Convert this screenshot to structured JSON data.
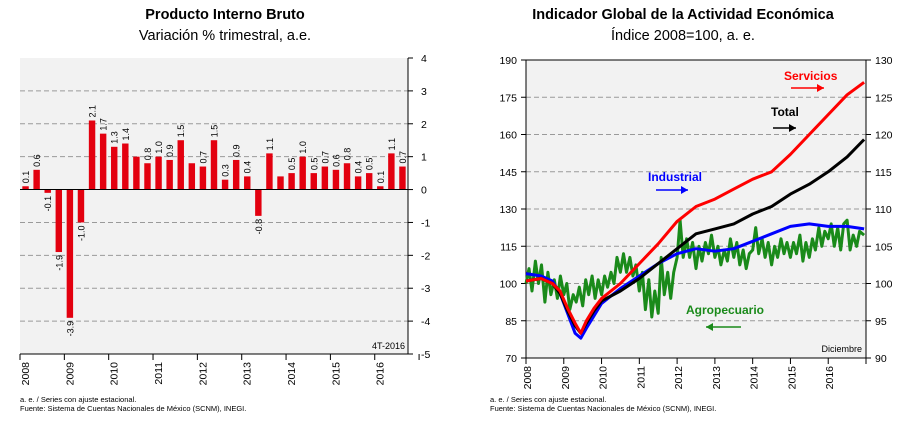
{
  "charts": [
    {
      "type": "bar",
      "title": "Producto Interno Bruto",
      "subtitle": "Variación % trimestral, a.e.",
      "ylim": [
        -5,
        4
      ],
      "yticks": [
        "4",
        "3",
        "2",
        "1",
        "0",
        "-1",
        "-2",
        "-3",
        "-4",
        "-5"
      ],
      "year_labels": [
        "2008",
        "2009",
        "2010",
        "2011",
        "2012",
        "2013",
        "2014",
        "2015",
        "2016"
      ],
      "annotation": "4T-2016",
      "footnote_1": "a. e. / Series con ajuste estacional.",
      "footnote_2": "Fuente: Sistema de Cuentas Nacionales de México (SCNM), INEGI.",
      "bar_color": "#e3000f",
      "values": [
        0.1,
        0.6,
        -0.1,
        -1.9,
        -3.9,
        -1.0,
        2.1,
        1.7,
        1.3,
        1.4,
        1.0,
        0.8,
        1.0,
        0.9,
        1.5,
        0.8,
        0.7,
        1.5,
        0.3,
        0.9,
        0.4,
        -0.8,
        1.1,
        0.4,
        0.5,
        1.0,
        0.5,
        0.7,
        0.6,
        0.8,
        0.4,
        0.5,
        0.1,
        1.1,
        0.7
      ],
      "value_labels": [
        "0.1",
        "0.6",
        "-0.1",
        "-1.9",
        "-3.9",
        "-1.0",
        "2.1",
        "1.7",
        "1.3",
        "1.4",
        "1.0",
        "0.8",
        "1.0",
        "0.9",
        "1.5",
        "0.8",
        "0.7",
        "1.5",
        "0.3",
        "0.9",
        "0.4",
        "-0.8",
        "1.1",
        "0.4",
        "0.5",
        "1.0",
        "0.5",
        "0.7",
        "0.6",
        "0.8",
        "0.4",
        "0.5",
        "0.1",
        "1.1",
        "0.7"
      ],
      "label_shown": [
        true,
        true,
        true,
        true,
        true,
        true,
        true,
        true,
        true,
        true,
        false,
        true,
        true,
        true,
        true,
        false,
        true,
        true,
        true,
        true,
        true,
        true,
        true,
        false,
        true,
        true,
        true,
        true,
        true,
        true,
        true,
        true,
        true,
        true,
        true
      ]
    },
    {
      "type": "line",
      "title": "Indicador Global de la Actividad Económica",
      "subtitle": "Índice 2008=100, a. e.",
      "y_left": [
        70,
        190
      ],
      "y_left_ticks": [
        "190",
        "175",
        "160",
        "145",
        "130",
        "115",
        "100",
        "85",
        "70"
      ],
      "y_right": [
        90,
        130
      ],
      "y_right_ticks": [
        "130",
        "125",
        "120",
        "115",
        "110",
        "105",
        "100",
        "95",
        "90"
      ],
      "x_range": [
        2008,
        2017
      ],
      "year_labels": [
        "2008",
        "2009",
        "2010",
        "2011",
        "2012",
        "2013",
        "2014",
        "2015",
        "2016"
      ],
      "annotation": "Diciembre",
      "footnote_1": "a. e. / Series con ajuste estacional.",
      "footnote_2": "Fuente: Sistema de Cuentas Nacionales de México (SCNM), INEGI.",
      "series": [
        {
          "name": "Servicios",
          "axis": "left",
          "color": "#ff0000",
          "points": [
            [
              2008.0,
              101
            ],
            [
              2008.4,
              102
            ],
            [
              2008.7,
              100
            ],
            [
              2008.9,
              97
            ],
            [
              2009.1,
              90
            ],
            [
              2009.3,
              84
            ],
            [
              2009.45,
              80
            ],
            [
              2009.6,
              85
            ],
            [
              2009.8,
              90
            ],
            [
              2010.0,
              94
            ],
            [
              2010.5,
              100
            ],
            [
              2011.0,
              108
            ],
            [
              2011.5,
              116
            ],
            [
              2012.0,
              125
            ],
            [
              2012.5,
              131
            ],
            [
              2013.0,
              134
            ],
            [
              2013.5,
              138
            ],
            [
              2014.0,
              142
            ],
            [
              2014.5,
              145
            ],
            [
              2015.0,
              152
            ],
            [
              2015.5,
              160
            ],
            [
              2016.0,
              168
            ],
            [
              2016.5,
              176
            ],
            [
              2016.95,
              181
            ]
          ]
        },
        {
          "name": "Total",
          "axis": "left",
          "color": "#000000",
          "points": [
            [
              2008.0,
              101
            ],
            [
              2008.4,
              102
            ],
            [
              2008.7,
              100
            ],
            [
              2008.9,
              96
            ],
            [
              2009.1,
              89
            ],
            [
              2009.3,
              83
            ],
            [
              2009.45,
              80
            ],
            [
              2009.6,
              84
            ],
            [
              2009.8,
              89
            ],
            [
              2010.0,
              93
            ],
            [
              2010.5,
              97
            ],
            [
              2011.0,
              102
            ],
            [
              2011.5,
              108
            ],
            [
              2012.0,
              114
            ],
            [
              2012.5,
              120
            ],
            [
              2013.0,
              122
            ],
            [
              2013.5,
              124
            ],
            [
              2014.0,
              128
            ],
            [
              2014.5,
              131
            ],
            [
              2015.0,
              136
            ],
            [
              2015.5,
              140
            ],
            [
              2016.0,
              145
            ],
            [
              2016.5,
              151
            ],
            [
              2016.95,
              158
            ]
          ]
        },
        {
          "name": "Industrial",
          "axis": "left",
          "color": "#0000ff",
          "points": [
            [
              2008.0,
              104
            ],
            [
              2008.4,
              103
            ],
            [
              2008.7,
              101
            ],
            [
              2008.9,
              96
            ],
            [
              2009.1,
              88
            ],
            [
              2009.3,
              80
            ],
            [
              2009.45,
              78
            ],
            [
              2009.6,
              82
            ],
            [
              2009.8,
              87
            ],
            [
              2010.0,
              92
            ],
            [
              2010.5,
              98
            ],
            [
              2011.0,
              103
            ],
            [
              2011.5,
              108
            ],
            [
              2012.0,
              112
            ],
            [
              2012.5,
              114
            ],
            [
              2013.0,
              113
            ],
            [
              2013.5,
              114
            ],
            [
              2014.0,
              117
            ],
            [
              2014.5,
              120
            ],
            [
              2015.0,
              123
            ],
            [
              2015.5,
              124
            ],
            [
              2016.0,
              123
            ],
            [
              2016.5,
              123
            ],
            [
              2016.95,
              122
            ]
          ]
        },
        {
          "name": "Agropecuario",
          "axis": "right",
          "color": "#1a8a1a",
          "points": [
            [
              2008.0,
              100.0
            ],
            [
              2008.08,
              102.0
            ],
            [
              2008.16,
              99.0
            ],
            [
              2008.25,
              103.0
            ],
            [
              2008.33,
              100.0
            ],
            [
              2008.41,
              102.5
            ],
            [
              2008.5,
              97.5
            ],
            [
              2008.58,
              101.5
            ],
            [
              2008.66,
              98.5
            ],
            [
              2008.75,
              100.5
            ],
            [
              2008.83,
              98.0
            ],
            [
              2008.91,
              101.0
            ],
            [
              2009.0,
              98.5
            ],
            [
              2009.08,
              100.0
            ],
            [
              2009.16,
              96.5
            ],
            [
              2009.25,
              98.5
            ],
            [
              2009.33,
              97.5
            ],
            [
              2009.41,
              99.5
            ],
            [
              2009.5,
              97.0
            ],
            [
              2009.58,
              100.5
            ],
            [
              2009.66,
              98.5
            ],
            [
              2009.75,
              101.0
            ],
            [
              2009.83,
              98.0
            ],
            [
              2009.91,
              100.5
            ],
            [
              2010.0,
              98.5
            ],
            [
              2010.08,
              101.0
            ],
            [
              2010.16,
              99.5
            ],
            [
              2010.25,
              101.5
            ],
            [
              2010.33,
              100.0
            ],
            [
              2010.41,
              103.5
            ],
            [
              2010.5,
              101.5
            ],
            [
              2010.58,
              104.0
            ],
            [
              2010.66,
              101.5
            ],
            [
              2010.75,
              103.5
            ],
            [
              2010.83,
              101.0
            ],
            [
              2010.91,
              102.5
            ],
            [
              2011.0,
              99.0
            ],
            [
              2011.08,
              101.5
            ],
            [
              2011.16,
              96.5
            ],
            [
              2011.25,
              100.5
            ],
            [
              2011.33,
              95.5
            ],
            [
              2011.41,
              99.0
            ],
            [
              2011.5,
              96.0
            ],
            [
              2011.58,
              103.5
            ],
            [
              2011.66,
              98.5
            ],
            [
              2011.75,
              101.5
            ],
            [
              2011.83,
              98.0
            ],
            [
              2011.91,
              101.5
            ],
            [
              2012.0,
              103.5
            ],
            [
              2012.08,
              108.5
            ],
            [
              2012.16,
              103.5
            ],
            [
              2012.25,
              106.0
            ],
            [
              2012.33,
              103.5
            ],
            [
              2012.41,
              105.5
            ],
            [
              2012.5,
              102.0
            ],
            [
              2012.58,
              105.0
            ],
            [
              2012.66,
              103.0
            ],
            [
              2012.75,
              105.5
            ],
            [
              2012.83,
              104.0
            ],
            [
              2012.91,
              106.5
            ],
            [
              2013.0,
              103.5
            ],
            [
              2013.08,
              105.0
            ],
            [
              2013.16,
              102.5
            ],
            [
              2013.25,
              104.5
            ],
            [
              2013.33,
              103.0
            ],
            [
              2013.41,
              106.0
            ],
            [
              2013.5,
              103.5
            ],
            [
              2013.58,
              105.5
            ],
            [
              2013.66,
              102.5
            ],
            [
              2013.75,
              104.5
            ],
            [
              2013.83,
              102.0
            ],
            [
              2013.91,
              104.0
            ],
            [
              2014.0,
              104.5
            ],
            [
              2014.08,
              107.5
            ],
            [
              2014.16,
              104.0
            ],
            [
              2014.25,
              106.0
            ],
            [
              2014.33,
              103.5
            ],
            [
              2014.41,
              105.5
            ],
            [
              2014.5,
              102.5
            ],
            [
              2014.58,
              105.0
            ],
            [
              2014.66,
              103.5
            ],
            [
              2014.75,
              106.0
            ],
            [
              2014.83,
              104.0
            ],
            [
              2014.91,
              105.5
            ],
            [
              2015.0,
              103.5
            ],
            [
              2015.08,
              105.5
            ],
            [
              2015.16,
              104.0
            ],
            [
              2015.25,
              106.5
            ],
            [
              2015.33,
              103.0
            ],
            [
              2015.41,
              105.5
            ],
            [
              2015.5,
              103.5
            ],
            [
              2015.58,
              106.0
            ],
            [
              2015.66,
              104.5
            ],
            [
              2015.75,
              107.5
            ],
            [
              2015.83,
              105.0
            ],
            [
              2015.91,
              107.0
            ],
            [
              2016.0,
              106.0
            ],
            [
              2016.08,
              108.0
            ],
            [
              2016.16,
              105.0
            ],
            [
              2016.25,
              107.5
            ],
            [
              2016.33,
              104.5
            ],
            [
              2016.41,
              108.0
            ],
            [
              2016.5,
              108.5
            ],
            [
              2016.58,
              104.5
            ],
            [
              2016.66,
              106.5
            ],
            [
              2016.75,
              105.0
            ],
            [
              2016.83,
              107.0
            ],
            [
              2016.95,
              106.5
            ]
          ]
        }
      ]
    }
  ]
}
